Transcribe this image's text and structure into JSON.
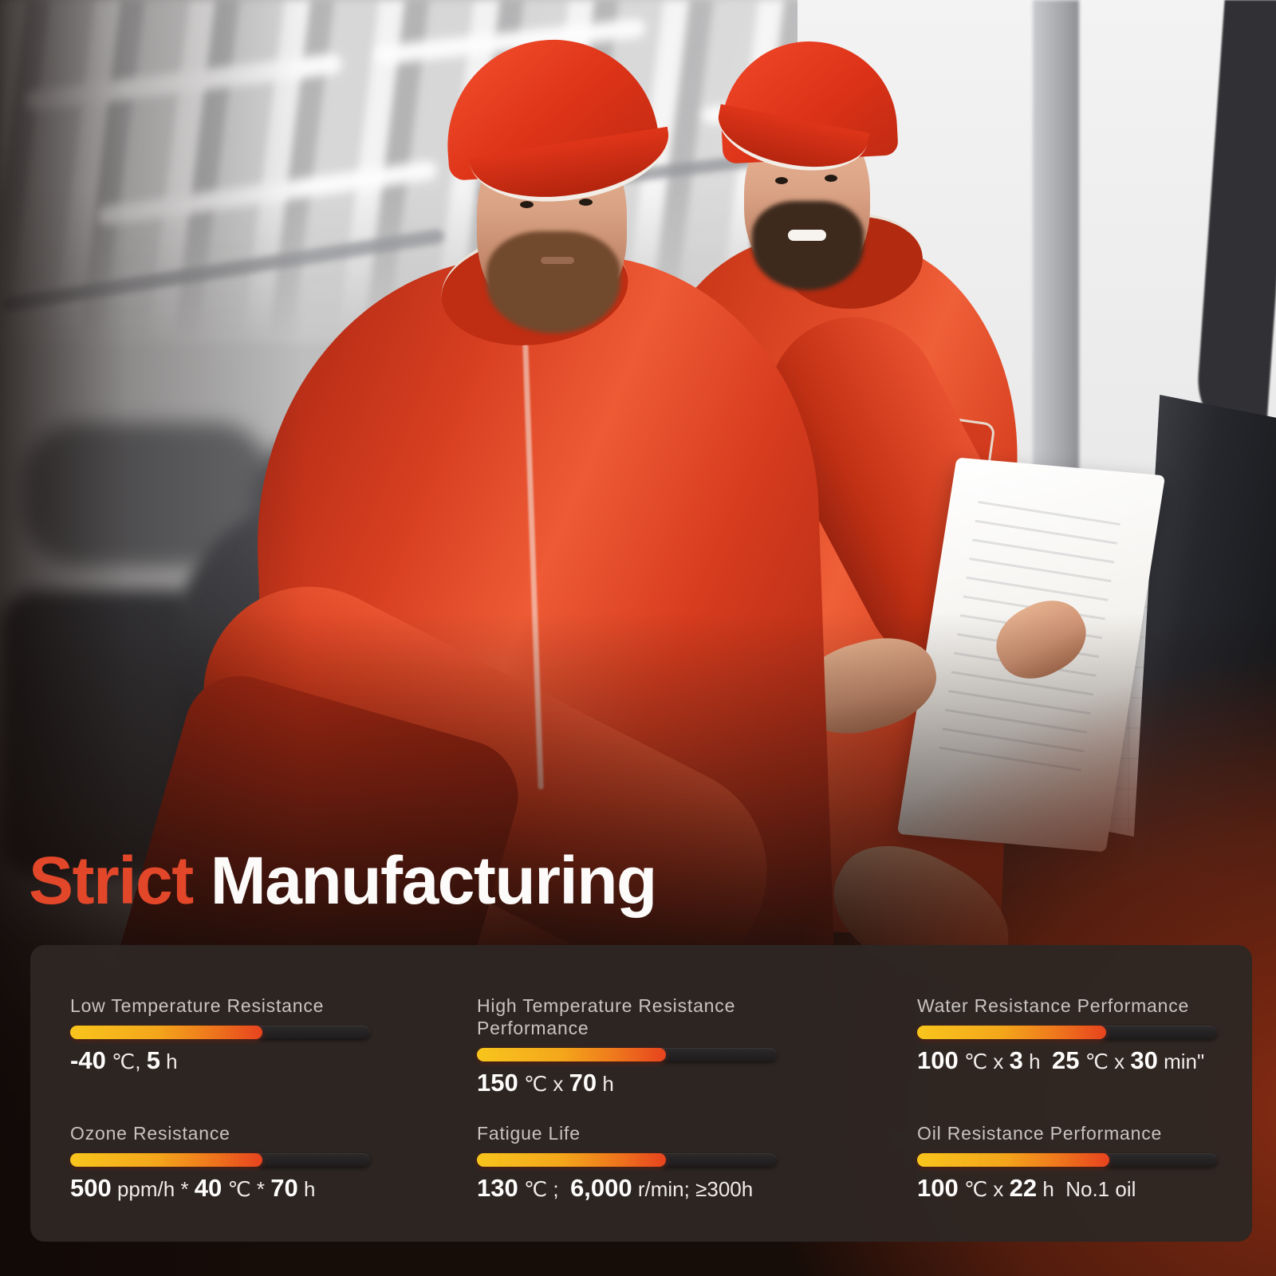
{
  "title": {
    "accent": "Strict",
    "rest": "Manufacturing"
  },
  "colors": {
    "accent_orange": "#e2472a",
    "title_white": "#fcfbfa",
    "panel_bg": "#2e2623",
    "label_gray": "#c9c3c0",
    "bar_gradient_start": "#f8c51c",
    "bar_gradient_end": "#e7431e",
    "bar_track": "#1e1b1c",
    "uniform_red": "#d63e20"
  },
  "specs": {
    "items": [
      {
        "label": "Low Temperature Resistance",
        "fill_pct": 64,
        "segments": [
          {
            "t": "-40",
            "b": true
          },
          {
            "t": " ℃, ",
            "b": false
          },
          {
            "t": "5",
            "b": true
          },
          {
            "t": " h",
            "b": false
          }
        ]
      },
      {
        "label": "High Temperature Resistance Performance",
        "fill_pct": 63,
        "segments": [
          {
            "t": "150",
            "b": true
          },
          {
            "t": " ℃ x ",
            "b": false
          },
          {
            "t": "70",
            "b": true
          },
          {
            "t": " h",
            "b": false
          }
        ]
      },
      {
        "label": "Water Resistance Performance",
        "fill_pct": 63,
        "segments": [
          {
            "t": "100",
            "b": true
          },
          {
            "t": " ℃ x ",
            "b": false
          },
          {
            "t": "3",
            "b": true
          },
          {
            "t": " h  ",
            "b": false
          },
          {
            "t": "25",
            "b": true
          },
          {
            "t": " ℃ x ",
            "b": false
          },
          {
            "t": "30",
            "b": true
          },
          {
            "t": " min\"",
            "b": false
          }
        ]
      },
      {
        "label": "Ozone Resistance",
        "fill_pct": 64,
        "segments": [
          {
            "t": "500",
            "b": true
          },
          {
            "t": " ppm/h * ",
            "b": false
          },
          {
            "t": "40",
            "b": true
          },
          {
            "t": " ℃ * ",
            "b": false
          },
          {
            "t": "70",
            "b": true
          },
          {
            "t": " h",
            "b": false
          }
        ]
      },
      {
        "label": "Fatigue Life",
        "fill_pct": 63,
        "segments": [
          {
            "t": "130",
            "b": true
          },
          {
            "t": " ℃ ;  ",
            "b": false
          },
          {
            "t": "6,000",
            "b": true
          },
          {
            "t": " r/min; ≥300h",
            "b": false
          }
        ]
      },
      {
        "label": "Oil Resistance Performance",
        "fill_pct": 64,
        "segments": [
          {
            "t": "100",
            "b": true
          },
          {
            "t": " ℃ x ",
            "b": false
          },
          {
            "t": "22",
            "b": true
          },
          {
            "t": " h  No.1 oil",
            "b": false
          }
        ]
      }
    ]
  }
}
